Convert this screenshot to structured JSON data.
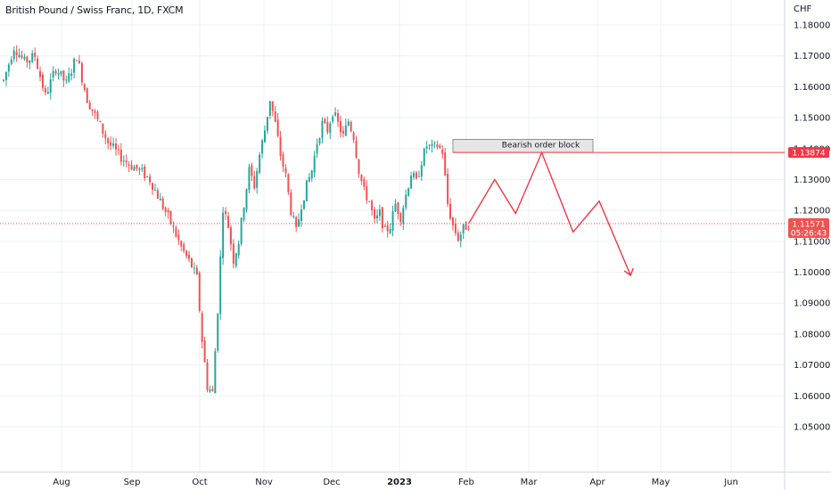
{
  "header": {
    "symbol_title": "British Pound / Swiss Franc, 1D, FXCM",
    "currency": "CHF"
  },
  "colors": {
    "bull": "#26a69a",
    "bear": "#ef5350",
    "annotation": "#f23645",
    "grid": "#eef0f3",
    "order_block_fill": "#e6e6e6",
    "order_block_border": "#555555"
  },
  "chart_data": {
    "type": "candlestick",
    "yaxis": {
      "ticks": [
        "1.18000",
        "1.17000",
        "1.16000",
        "1.15000",
        "1.14000",
        "1.13000",
        "1.12000",
        "1.11000",
        "1.10000",
        "1.09000",
        "1.08000",
        "1.07000",
        "1.06000",
        "1.05000"
      ],
      "ylim": [
        1.0415,
        1.185
      ]
    },
    "xaxis": {
      "ticks": [
        {
          "label": "Aug",
          "bold": false
        },
        {
          "label": "Sep",
          "bold": false
        },
        {
          "label": "Oct",
          "bold": false
        },
        {
          "label": "Nov",
          "bold": false
        },
        {
          "label": "Dec",
          "bold": false
        },
        {
          "label": "2023",
          "bold": true
        },
        {
          "label": "Feb",
          "bold": false
        },
        {
          "label": "Mar",
          "bold": false
        },
        {
          "label": "Apr",
          "bold": false
        },
        {
          "label": "May",
          "bold": false
        },
        {
          "label": "Jun",
          "bold": false
        }
      ]
    },
    "price_path": [
      [
        0,
        1.162
      ],
      [
        4,
        1.173
      ],
      [
        8,
        1.168
      ],
      [
        12,
        1.17
      ],
      [
        16,
        1.157
      ],
      [
        20,
        1.166
      ],
      [
        24,
        1.161
      ],
      [
        28,
        1.17
      ],
      [
        32,
        1.156
      ],
      [
        36,
        1.149
      ],
      [
        40,
        1.142
      ],
      [
        44,
        1.138
      ],
      [
        48,
        1.135
      ],
      [
        52,
        1.133
      ],
      [
        56,
        1.13
      ],
      [
        60,
        1.123
      ],
      [
        64,
        1.116
      ],
      [
        68,
        1.108
      ],
      [
        72,
        1.102
      ],
      [
        74,
        1.098
      ],
      [
        76,
        1.078
      ],
      [
        78,
        1.063
      ],
      [
        80,
        1.061
      ],
      [
        82,
        1.088
      ],
      [
        84,
        1.121
      ],
      [
        86,
        1.115
      ],
      [
        88,
        1.104
      ],
      [
        90,
        1.11
      ],
      [
        92,
        1.122
      ],
      [
        94,
        1.133
      ],
      [
        96,
        1.128
      ],
      [
        98,
        1.138
      ],
      [
        100,
        1.146
      ],
      [
        102,
        1.156
      ],
      [
        104,
        1.148
      ],
      [
        106,
        1.138
      ],
      [
        108,
        1.131
      ],
      [
        110,
        1.12
      ],
      [
        112,
        1.113
      ],
      [
        114,
        1.122
      ],
      [
        116,
        1.128
      ],
      [
        118,
        1.133
      ],
      [
        120,
        1.142
      ],
      [
        122,
        1.148
      ],
      [
        124,
        1.146
      ],
      [
        126,
        1.152
      ],
      [
        128,
        1.148
      ],
      [
        130,
        1.144
      ],
      [
        132,
        1.149
      ],
      [
        134,
        1.144
      ],
      [
        136,
        1.133
      ],
      [
        138,
        1.126
      ],
      [
        140,
        1.123
      ],
      [
        142,
        1.116
      ],
      [
        144,
        1.119
      ],
      [
        146,
        1.113
      ],
      [
        148,
        1.115
      ],
      [
        150,
        1.122
      ],
      [
        152,
        1.118
      ],
      [
        154,
        1.125
      ],
      [
        156,
        1.132
      ],
      [
        158,
        1.129
      ],
      [
        160,
        1.136
      ],
      [
        162,
        1.141
      ],
      [
        164,
        1.14
      ],
      [
        166,
        1.141
      ],
      [
        168,
        1.139
      ],
      [
        170,
        1.122
      ],
      [
        172,
        1.115
      ],
      [
        174,
        1.111
      ],
      [
        176,
        1.114
      ],
      [
        178,
        1.1157
      ]
    ],
    "horizontal_lines": [
      {
        "price": 1.13874,
        "style": "solid",
        "label": "1.13874"
      },
      {
        "price": 1.11571,
        "style": "dotted",
        "label": "1.11571",
        "sublabel": "05:26:43"
      }
    ],
    "order_block": {
      "label": "Bearish order block",
      "top": 1.143,
      "bottom": 1.13874
    },
    "projected_path": [
      [
        178,
        1.1157
      ],
      [
        188,
        1.13
      ],
      [
        196,
        1.119
      ],
      [
        206,
        1.1387
      ],
      [
        218,
        1.113
      ],
      [
        228,
        1.123
      ],
      [
        240,
        1.099
      ]
    ]
  }
}
